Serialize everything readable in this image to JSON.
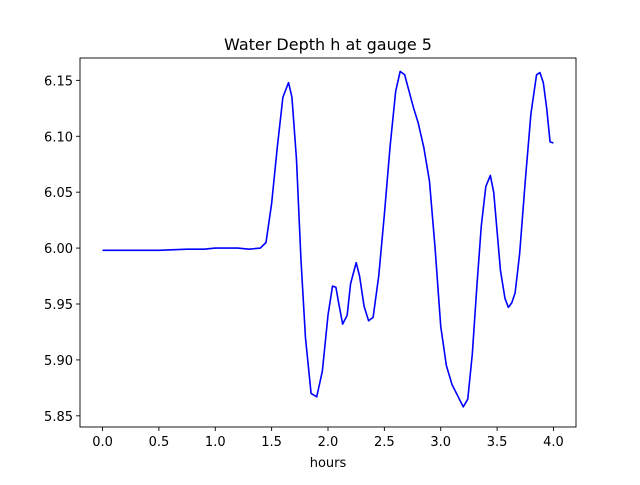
{
  "chart_data": {
    "type": "line",
    "title": "Water Depth h at gauge 5",
    "xlabel": "hours",
    "ylabel": "",
    "xlim": [
      -0.2,
      4.2
    ],
    "ylim": [
      5.84,
      6.17
    ],
    "xticks": [
      0.0,
      0.5,
      1.0,
      1.5,
      2.0,
      2.5,
      3.0,
      3.5,
      4.0
    ],
    "xtick_labels": [
      "0.0",
      "0.5",
      "1.0",
      "1.5",
      "2.0",
      "2.5",
      "3.0",
      "3.5",
      "4.0"
    ],
    "yticks": [
      5.85,
      5.9,
      5.95,
      6.0,
      6.05,
      6.1,
      6.15
    ],
    "ytick_labels": [
      "5.85",
      "5.90",
      "5.95",
      "6.00",
      "6.05",
      "6.10",
      "6.15"
    ],
    "grid": false,
    "legend": "none",
    "series": [
      {
        "color": "#0000ff",
        "x": [
          0.0,
          0.25,
          0.5,
          0.75,
          0.9,
          1.0,
          1.1,
          1.2,
          1.3,
          1.4,
          1.45,
          1.5,
          1.55,
          1.6,
          1.65,
          1.68,
          1.72,
          1.76,
          1.8,
          1.85,
          1.9,
          1.95,
          2.0,
          2.04,
          2.07,
          2.1,
          2.13,
          2.17,
          2.2,
          2.25,
          2.28,
          2.32,
          2.36,
          2.4,
          2.45,
          2.5,
          2.55,
          2.6,
          2.64,
          2.68,
          2.72,
          2.76,
          2.8,
          2.85,
          2.9,
          2.95,
          3.0,
          3.05,
          3.1,
          3.15,
          3.2,
          3.24,
          3.28,
          3.32,
          3.36,
          3.4,
          3.44,
          3.47,
          3.5,
          3.53,
          3.57,
          3.6,
          3.63,
          3.66,
          3.7,
          3.75,
          3.8,
          3.85,
          3.88,
          3.91,
          3.94,
          3.97,
          4.0
        ],
        "y": [
          5.998,
          5.998,
          5.998,
          5.999,
          5.999,
          6.0,
          6.0,
          6.0,
          5.999,
          6.0,
          6.005,
          6.04,
          6.09,
          6.135,
          6.148,
          6.135,
          6.08,
          5.99,
          5.92,
          5.87,
          5.867,
          5.89,
          5.94,
          5.966,
          5.965,
          5.948,
          5.932,
          5.94,
          5.968,
          5.987,
          5.975,
          5.948,
          5.935,
          5.938,
          5.975,
          6.03,
          6.09,
          6.14,
          6.158,
          6.155,
          6.14,
          6.125,
          6.112,
          6.09,
          6.06,
          6.0,
          5.93,
          5.895,
          5.878,
          5.868,
          5.858,
          5.865,
          5.905,
          5.965,
          6.02,
          6.055,
          6.065,
          6.05,
          6.015,
          5.98,
          5.955,
          5.947,
          5.951,
          5.96,
          5.995,
          6.06,
          6.12,
          6.155,
          6.157,
          6.148,
          6.125,
          6.095,
          6.094
        ]
      }
    ]
  }
}
